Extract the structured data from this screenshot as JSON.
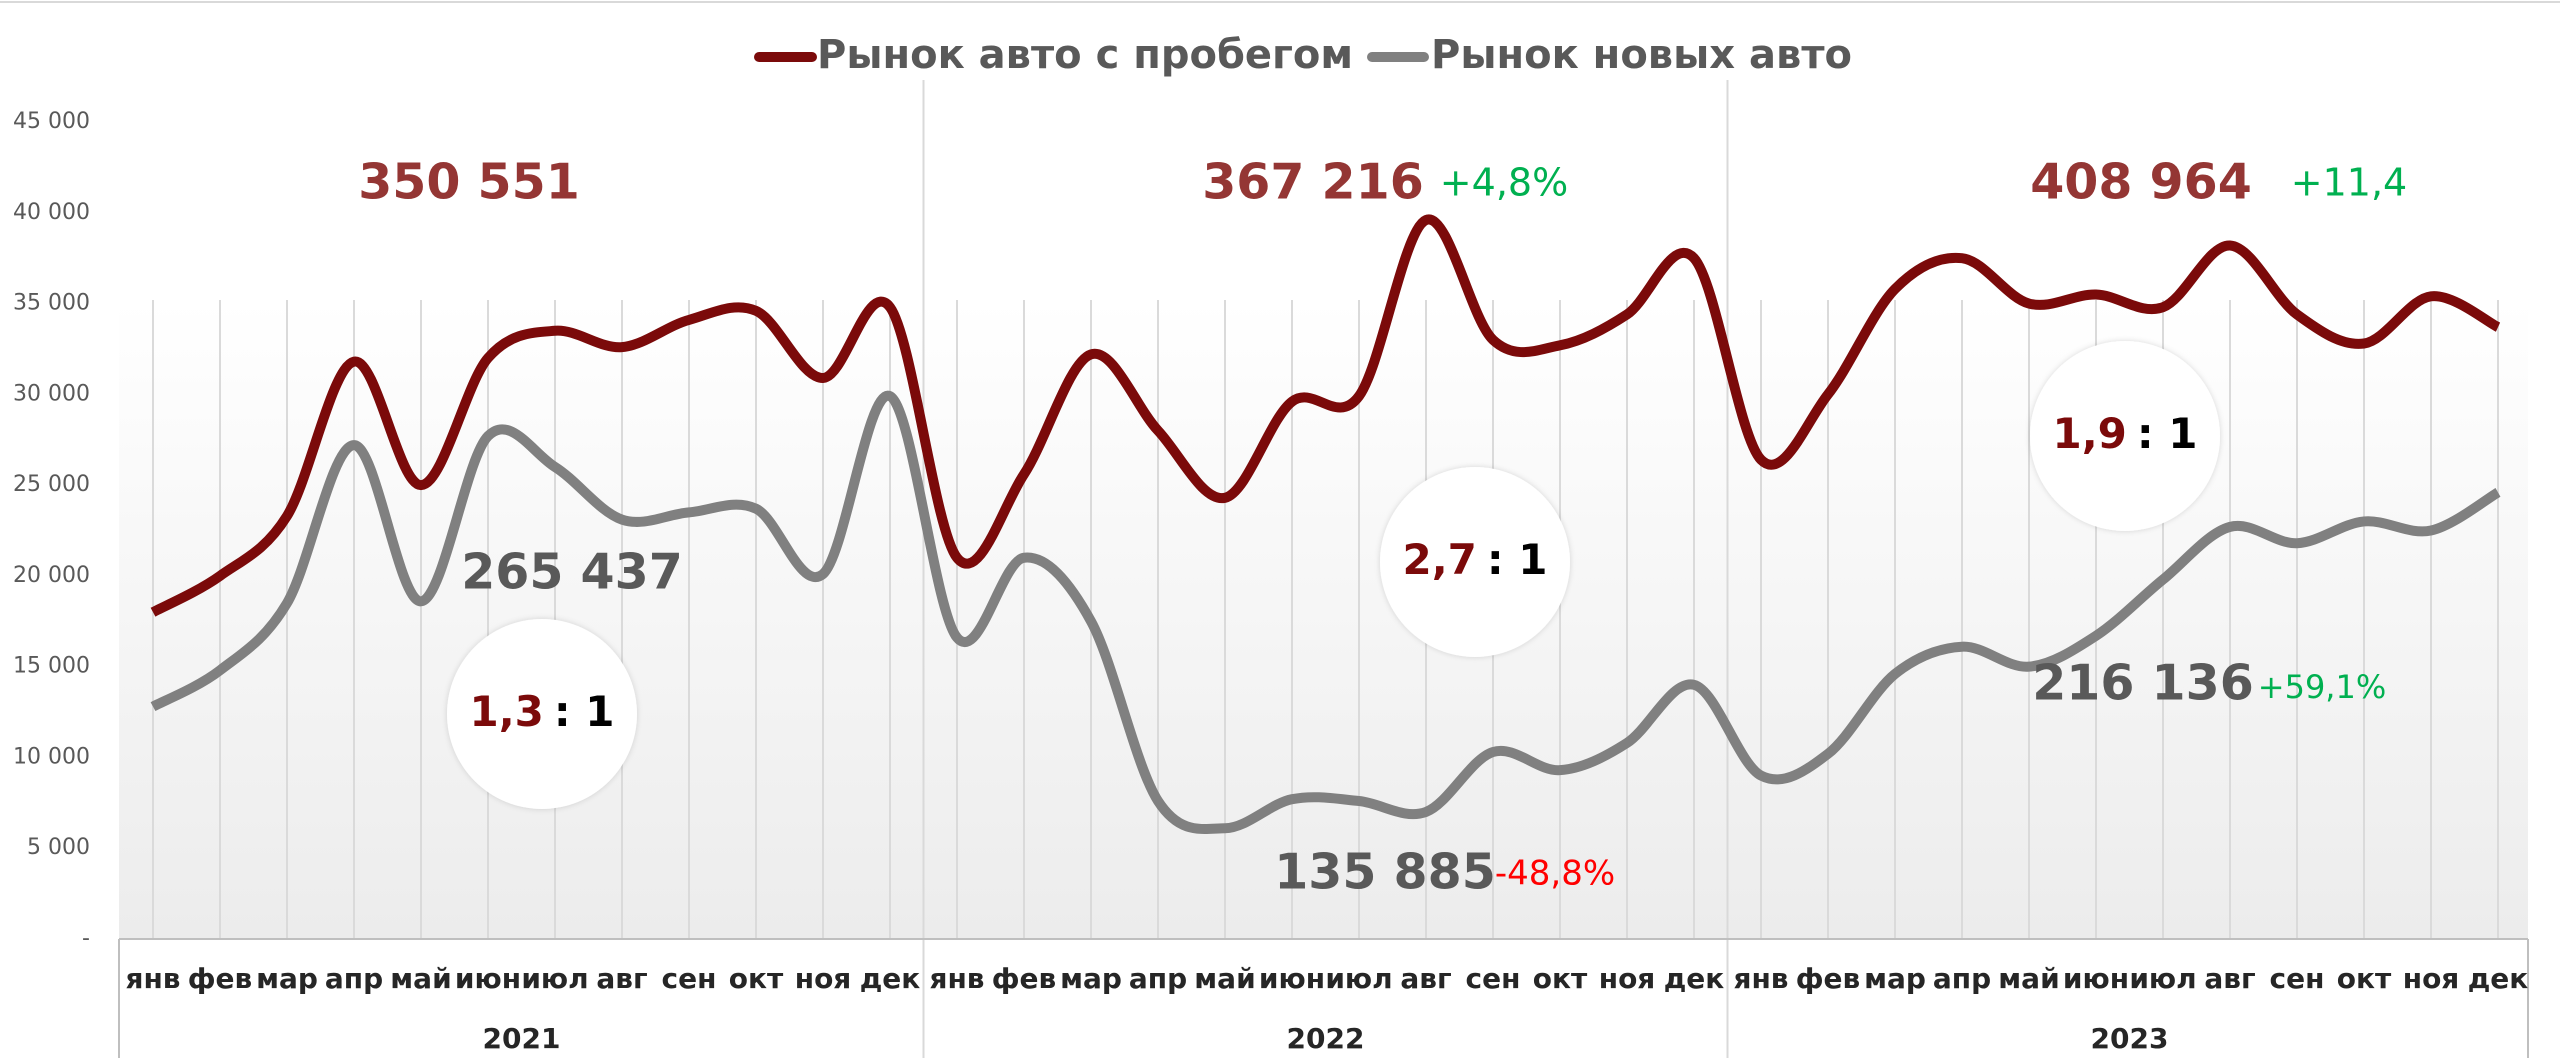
{
  "chart_data": {
    "type": "line",
    "categories": [
      "янв",
      "фев",
      "мар",
      "апр",
      "май",
      "июн",
      "июл",
      "авг",
      "сен",
      "окт",
      "ноя",
      "дек",
      "янв",
      "фев",
      "мар",
      "апр",
      "май",
      "июн",
      "июл",
      "авг",
      "сен",
      "окт",
      "ноя",
      "дек",
      "янв",
      "фев",
      "мар",
      "апр",
      "май",
      "июн",
      "июл",
      "авг",
      "сен",
      "окт",
      "ноя",
      "дек"
    ],
    "years": [
      "2021",
      "2022",
      "2023"
    ],
    "series": [
      {
        "name": "Рынок авто с пробегом",
        "color": "#7b0a0a",
        "values": [
          18000,
          20000,
          23300,
          31800,
          25000,
          32000,
          33500,
          32600,
          34100,
          34600,
          30900,
          34800,
          21000,
          25600,
          32200,
          28000,
          24300,
          29600,
          29900,
          39600,
          33000,
          32700,
          34400,
          37500,
          26400,
          30000,
          35800,
          37500,
          35000,
          35500,
          34800,
          38200,
          34400,
          32800,
          35400,
          33700
        ]
      },
      {
        "name": "Рынок новых авто",
        "color": "#808080",
        "values": [
          12800,
          14800,
          18500,
          27200,
          18600,
          27700,
          26000,
          23100,
          23500,
          23700,
          20100,
          29900,
          16600,
          21000,
          17500,
          7600,
          6100,
          7700,
          7600,
          7000,
          10300,
          9300,
          10800,
          14000,
          9000,
          10200,
          14600,
          16100,
          15000,
          16700,
          19800,
          22700,
          21800,
          23000,
          22500,
          24600
        ]
      }
    ],
    "ylim": [
      0,
      45000
    ],
    "yticks": [
      {
        "value": 0,
        "label": "-"
      },
      {
        "value": 5000,
        "label": "5 000"
      },
      {
        "value": 10000,
        "label": "10 000"
      },
      {
        "value": 15000,
        "label": "15 000"
      },
      {
        "value": 20000,
        "label": "20 000"
      },
      {
        "value": 25000,
        "label": "25 000"
      },
      {
        "value": 30000,
        "label": "30 000"
      },
      {
        "value": 35000,
        "label": "35 000"
      },
      {
        "value": 40000,
        "label": "40 000"
      },
      {
        "value": 45000,
        "label": "45 000"
      }
    ],
    "grid": true,
    "legend": "top",
    "annotations": [
      {
        "text": "350 551",
        "color": "#943634"
      },
      {
        "text": "367 216",
        "color": "#943634"
      },
      {
        "text": "+4,8%",
        "color": "#00b050"
      },
      {
        "text": "408 964",
        "color": "#943634"
      },
      {
        "text": "+11,4",
        "color": "#00b050"
      },
      {
        "text": "265 437",
        "color": "#595959"
      },
      {
        "text": "135 885",
        "color": "#595959"
      },
      {
        "text": "-48,8%",
        "color": "#ff0000"
      },
      {
        "text": "216 136",
        "color": "#595959"
      },
      {
        "text": "+59,1%",
        "color": "#00b050"
      }
    ],
    "ratios": [
      {
        "left": "1,3",
        "right": ": 1"
      },
      {
        "left": "2,7",
        "right": ": 1"
      },
      {
        "left": "1,9",
        "right": ": 1"
      }
    ]
  }
}
